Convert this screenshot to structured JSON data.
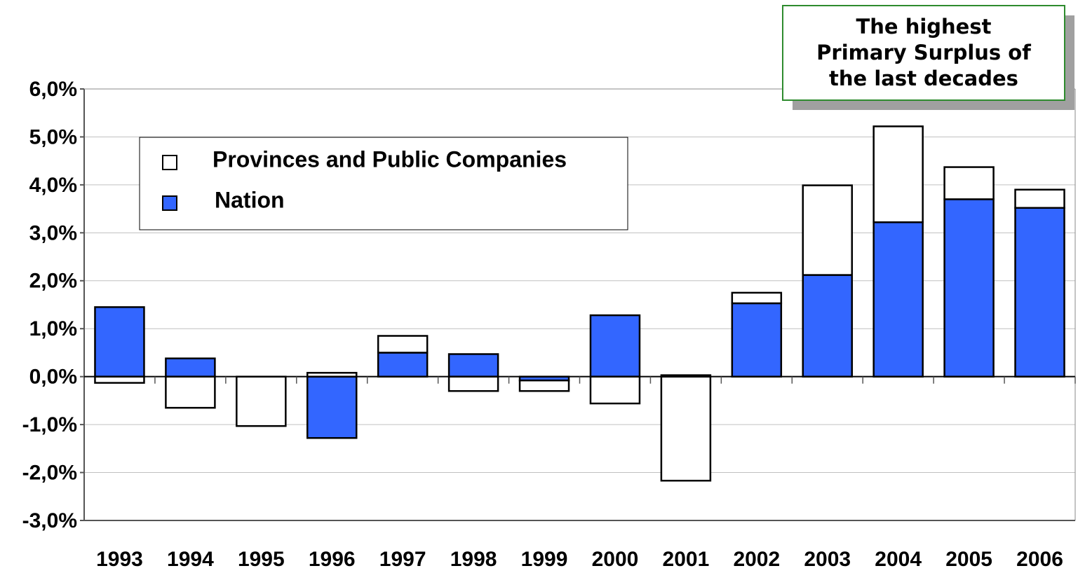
{
  "chart_data": {
    "type": "bar",
    "stacked": true,
    "annotation": [
      "The highest",
      "Primary Surplus of",
      "the last decades"
    ],
    "categories": [
      "1993",
      "1994",
      "1995",
      "1996",
      "1997",
      "1998",
      "1999",
      "2000",
      "2001",
      "2002",
      "2003",
      "2004",
      "2005",
      "2006"
    ],
    "series": [
      {
        "name": "Nation",
        "color": "#3366ff",
        "values": [
          1.45,
          0.38,
          0,
          -1.28,
          0.5,
          0.47,
          -0.08,
          1.28,
          0.03,
          1.53,
          2.12,
          3.22,
          3.7,
          3.52
        ]
      },
      {
        "name": "Provinces and Public Companies",
        "color": "#ffffff",
        "values": [
          -0.13,
          -0.65,
          -1.03,
          0.08,
          0.35,
          -0.3,
          -0.22,
          -0.56,
          -2.17,
          0.22,
          1.87,
          2.0,
          0.67,
          0.38
        ]
      }
    ],
    "ylim": [
      -3,
      6
    ],
    "yticks": [
      {
        "value": -3,
        "label": "-3,0%"
      },
      {
        "value": -2,
        "label": "-2,0%"
      },
      {
        "value": -1,
        "label": "-1,0%"
      },
      {
        "value": 0,
        "label": "0,0%"
      },
      {
        "value": 1,
        "label": "1,0%"
      },
      {
        "value": 2,
        "label": "2,0%"
      },
      {
        "value": 3,
        "label": "3,0%"
      },
      {
        "value": 4,
        "label": "4,0%"
      },
      {
        "value": 5,
        "label": "5,0%"
      },
      {
        "value": 6,
        "label": "6,0%"
      }
    ],
    "grid": true
  }
}
